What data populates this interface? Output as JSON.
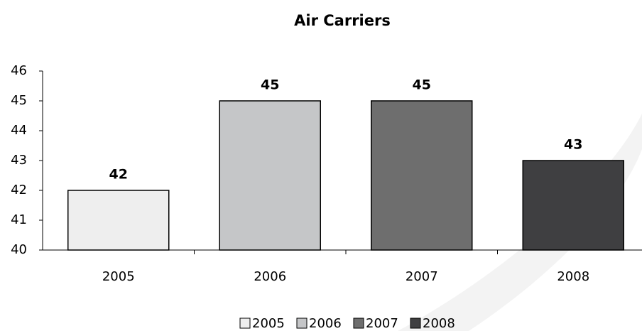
{
  "chart_data": {
    "type": "bar",
    "title": "Air Carriers",
    "categories": [
      "2005",
      "2006",
      "2007",
      "2008"
    ],
    "values": [
      42,
      45,
      45,
      43
    ],
    "colors": [
      "#eeeeee",
      "#c5c6c8",
      "#6e6e6e",
      "#3f3f41"
    ],
    "ylim": [
      40,
      46
    ],
    "yticks": [
      40,
      41,
      42,
      43,
      44,
      45,
      46
    ],
    "grid": false
  }
}
